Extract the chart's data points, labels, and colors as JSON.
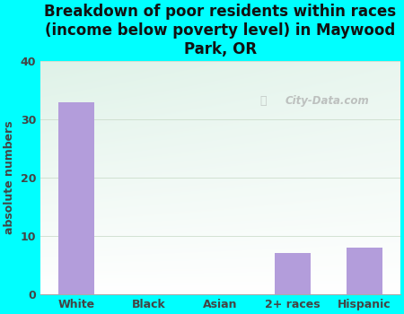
{
  "categories": [
    "White",
    "Black",
    "Asian",
    "2+ races",
    "Hispanic"
  ],
  "values": [
    33,
    0,
    0,
    7,
    8
  ],
  "bar_color": "#b39ddb",
  "title": "Breakdown of poor residents within races\n(income below poverty level) in Maywood\nPark, OR",
  "ylabel": "absolute numbers",
  "ylim": [
    0,
    40
  ],
  "yticks": [
    0,
    10,
    20,
    30,
    40
  ],
  "background_outer": "#00ffff",
  "plot_bg_topleft": "#dff2e8",
  "plot_bg_bottomright": "#f8ffff",
  "watermark": "City-Data.com",
  "title_fontsize": 12,
  "ylabel_fontsize": 9,
  "tick_fontsize": 9,
  "title_color": "#111111",
  "grid_color": "#ccddcc",
  "grid_linewidth": 0.6
}
